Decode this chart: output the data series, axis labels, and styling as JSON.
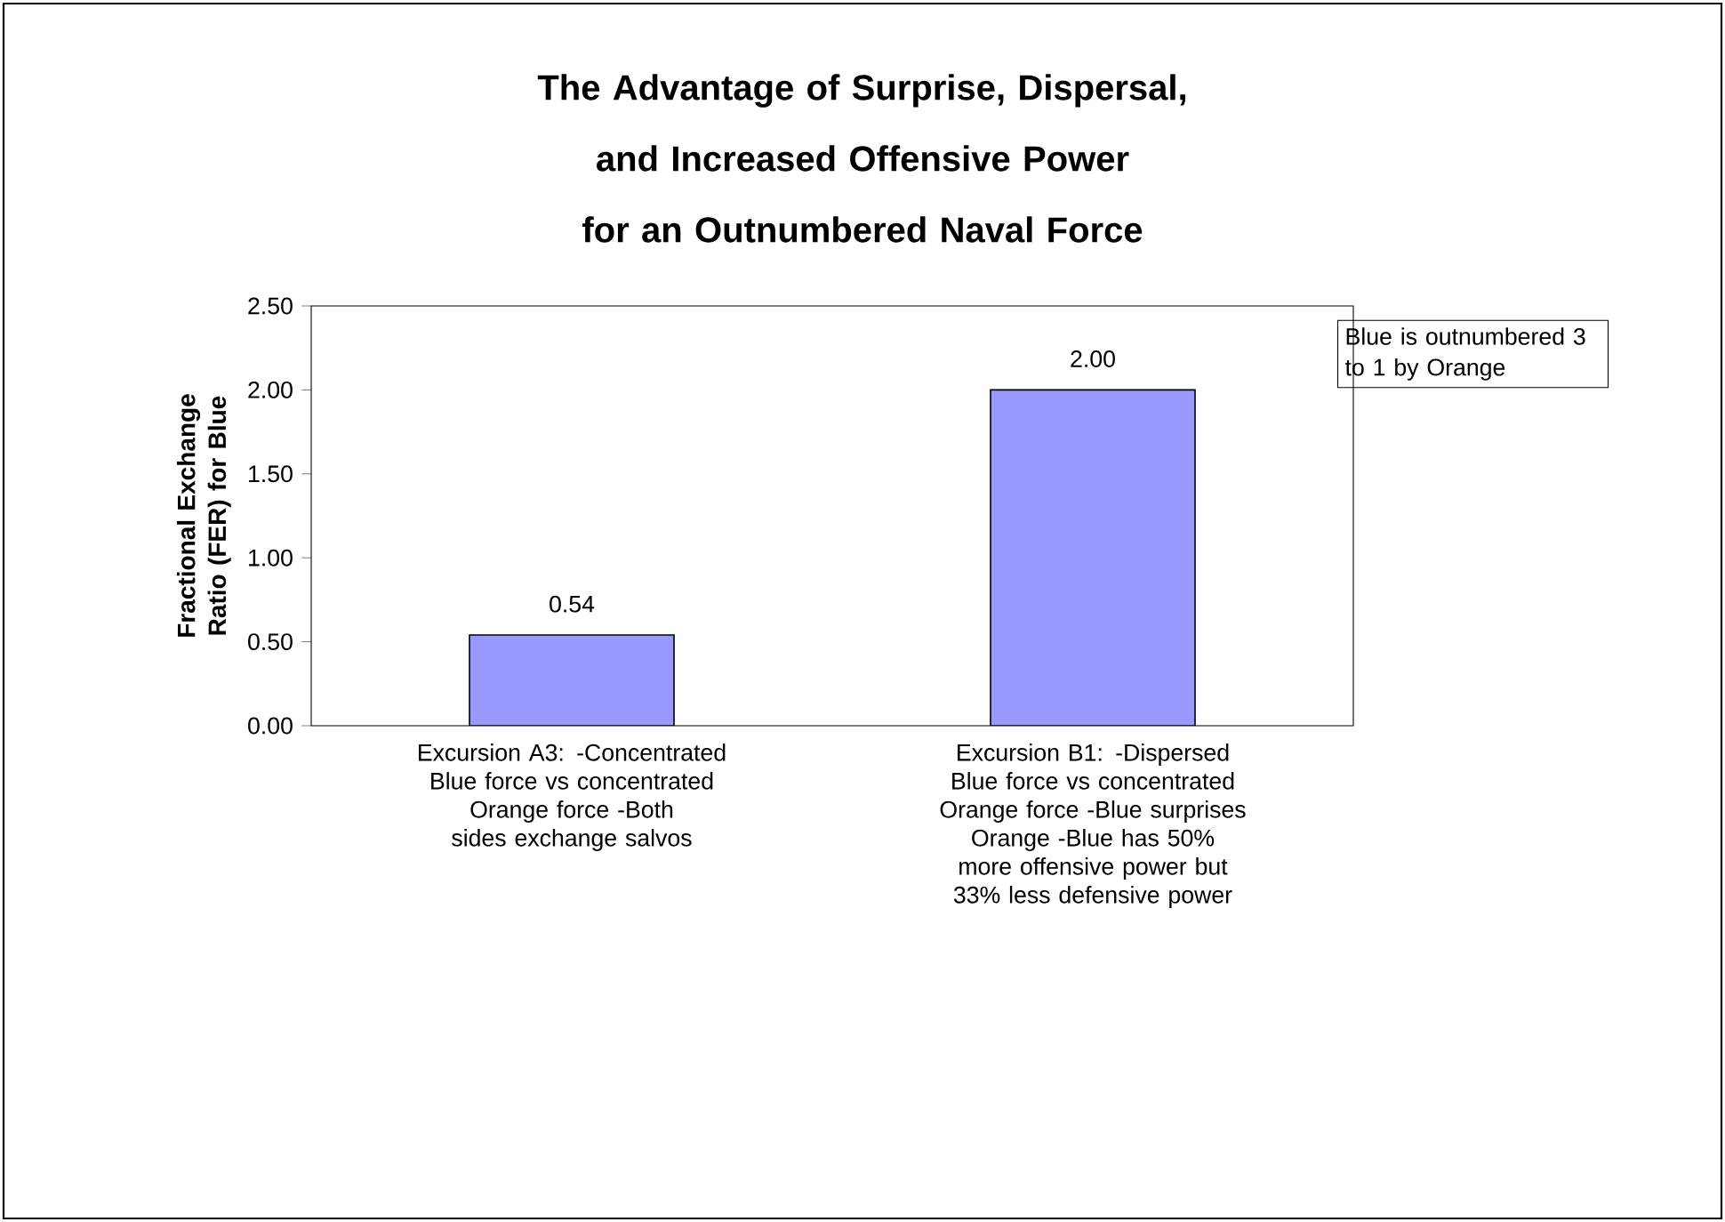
{
  "chart_data": {
    "type": "bar",
    "title": "The Advantage of Surprise, Dispersal, and Increased Offensive Power for an Outnumbered Naval Force",
    "ylabel": "Fractional Exchange Ratio (FER) for Blue",
    "categories": [
      "Excursion A3: -Concentrated Blue force vs concentrated Orange force -Both sides exchange salvos",
      "Excursion B1: -Dispersed Blue force vs concentrated Orange force -Blue surprises Orange -Blue has 50% more offensive power but 33% less defensive power"
    ],
    "values": [
      0.54,
      2.0
    ],
    "value_labels": [
      "0.54",
      "2.00"
    ],
    "color": "#9999ff",
    "ylim": [
      0,
      2.5
    ],
    "yticks": [
      {
        "value": 0,
        "label": "0.00"
      },
      {
        "value": 0.5,
        "label": "0.50"
      },
      {
        "value": 1,
        "label": "1.00"
      },
      {
        "value": 1.5,
        "label": "1.50"
      },
      {
        "value": 2,
        "label": "2.00"
      },
      {
        "value": 2.5,
        "label": "2.50"
      }
    ],
    "annotations": [
      "Blue is outnumbered 3 to 1 by Orange"
    ]
  }
}
